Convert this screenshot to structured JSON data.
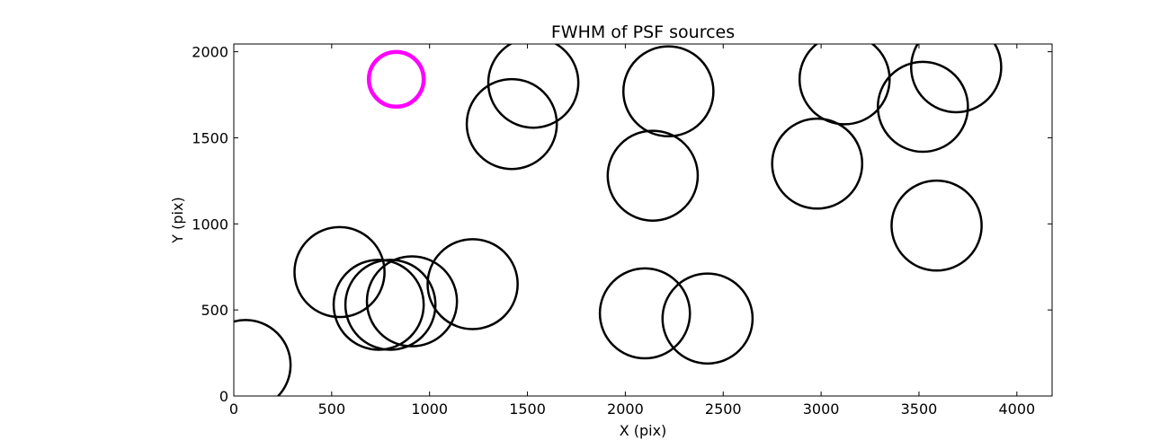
{
  "chart_data": {
    "type": "scatter",
    "title": "FWHM of PSF sources",
    "xlabel": "X (pix)",
    "ylabel": "Y (pix)",
    "xlim": [
      0,
      4180
    ],
    "ylim": [
      0,
      2045
    ],
    "xticks": [
      0,
      500,
      1000,
      1500,
      2000,
      2500,
      3000,
      3500,
      4000
    ],
    "yticks": [
      0,
      500,
      1000,
      1500,
      2000
    ],
    "grid": false,
    "highlight_color": "#ff00ff",
    "default_color": "#000000",
    "sources": [
      {
        "x": 60,
        "y": 180,
        "r": 230
      },
      {
        "x": 540,
        "y": 720,
        "r": 230
      },
      {
        "x": 740,
        "y": 530,
        "r": 230
      },
      {
        "x": 800,
        "y": 530,
        "r": 230
      },
      {
        "x": 910,
        "y": 550,
        "r": 230
      },
      {
        "x": 1220,
        "y": 650,
        "r": 230
      },
      {
        "x": 1420,
        "y": 1580,
        "r": 230
      },
      {
        "x": 1530,
        "y": 1820,
        "r": 230
      },
      {
        "x": 2140,
        "y": 1280,
        "r": 230
      },
      {
        "x": 2220,
        "y": 1770,
        "r": 230
      },
      {
        "x": 2100,
        "y": 480,
        "r": 230
      },
      {
        "x": 2420,
        "y": 450,
        "r": 230
      },
      {
        "x": 2980,
        "y": 1350,
        "r": 230
      },
      {
        "x": 3120,
        "y": 1840,
        "r": 230
      },
      {
        "x": 3520,
        "y": 1680,
        "r": 230
      },
      {
        "x": 3690,
        "y": 1910,
        "r": 230
      },
      {
        "x": 3590,
        "y": 990,
        "r": 230
      },
      {
        "x": 830,
        "y": 1840,
        "r": 140,
        "highlight": true
      }
    ]
  }
}
